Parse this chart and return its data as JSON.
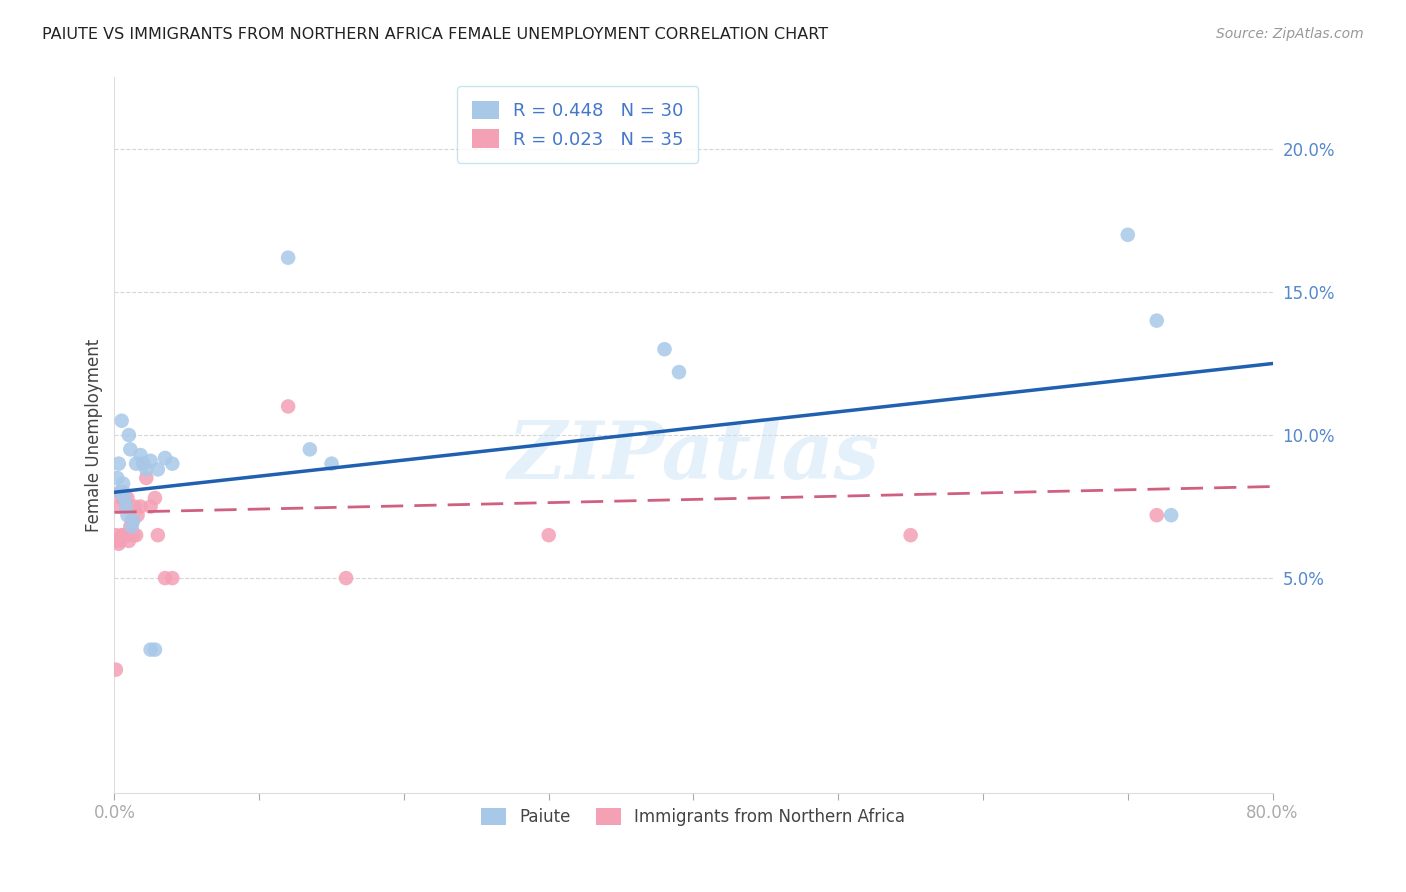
{
  "title": "PAIUTE VS IMMIGRANTS FROM NORTHERN AFRICA FEMALE UNEMPLOYMENT CORRELATION CHART",
  "source": "Source: ZipAtlas.com",
  "ylabel": "Female Unemployment",
  "xlim": [
    0.0,
    0.8
  ],
  "ylim": [
    -0.025,
    0.225
  ],
  "yticks": [
    0.05,
    0.1,
    0.15,
    0.2
  ],
  "ytick_labels": [
    "5.0%",
    "10.0%",
    "15.0%",
    "20.0%"
  ],
  "xticks": [
    0.0,
    0.1,
    0.2,
    0.3,
    0.4,
    0.5,
    0.6,
    0.7,
    0.8
  ],
  "xtick_labels": [
    "0.0%",
    "",
    "",
    "",
    "",
    "",
    "",
    "",
    "80.0%"
  ],
  "paiute_color": "#a8c8e8",
  "immigrant_color": "#f4a0b5",
  "paiute_line_color": "#2060b0",
  "immigrant_line_color": "#d06080",
  "watermark": "ZIPatlas",
  "paiute_R": 0.448,
  "paiute_N": 30,
  "immigrant_R": 0.023,
  "immigrant_N": 35,
  "paiute_x": [
    0.002,
    0.003,
    0.004,
    0.005,
    0.006,
    0.007,
    0.008,
    0.009,
    0.01,
    0.011,
    0.012,
    0.013,
    0.015,
    0.018,
    0.02,
    0.022,
    0.025,
    0.03,
    0.035,
    0.04,
    0.12,
    0.135,
    0.15,
    0.38,
    0.39,
    0.7,
    0.72,
    0.73,
    0.025,
    0.028
  ],
  "paiute_y": [
    0.085,
    0.09,
    0.08,
    0.105,
    0.083,
    0.078,
    0.075,
    0.072,
    0.1,
    0.095,
    0.068,
    0.07,
    0.09,
    0.093,
    0.09,
    0.088,
    0.091,
    0.088,
    0.092,
    0.09,
    0.162,
    0.095,
    0.09,
    0.13,
    0.122,
    0.17,
    0.14,
    0.072,
    0.025,
    0.025
  ],
  "immigrant_x": [
    0.001,
    0.002,
    0.003,
    0.003,
    0.004,
    0.004,
    0.005,
    0.005,
    0.006,
    0.007,
    0.007,
    0.008,
    0.008,
    0.009,
    0.01,
    0.011,
    0.012,
    0.013,
    0.014,
    0.015,
    0.016,
    0.018,
    0.02,
    0.022,
    0.025,
    0.028,
    0.03,
    0.035,
    0.04,
    0.12,
    0.16,
    0.3,
    0.55,
    0.72,
    0.001
  ],
  "immigrant_y": [
    0.065,
    0.063,
    0.062,
    0.075,
    0.063,
    0.08,
    0.065,
    0.078,
    0.08,
    0.065,
    0.078,
    0.065,
    0.075,
    0.078,
    0.063,
    0.068,
    0.07,
    0.065,
    0.075,
    0.065,
    0.072,
    0.075,
    0.09,
    0.085,
    0.075,
    0.078,
    0.065,
    0.05,
    0.05,
    0.11,
    0.05,
    0.065,
    0.065,
    0.072,
    0.018
  ],
  "paiute_line_x0": 0.0,
  "paiute_line_x1": 0.8,
  "paiute_line_y0": 0.08,
  "paiute_line_y1": 0.125,
  "immigrant_line_x0": 0.0,
  "immigrant_line_x1": 0.8,
  "immigrant_line_y0": 0.073,
  "immigrant_line_y1": 0.082
}
